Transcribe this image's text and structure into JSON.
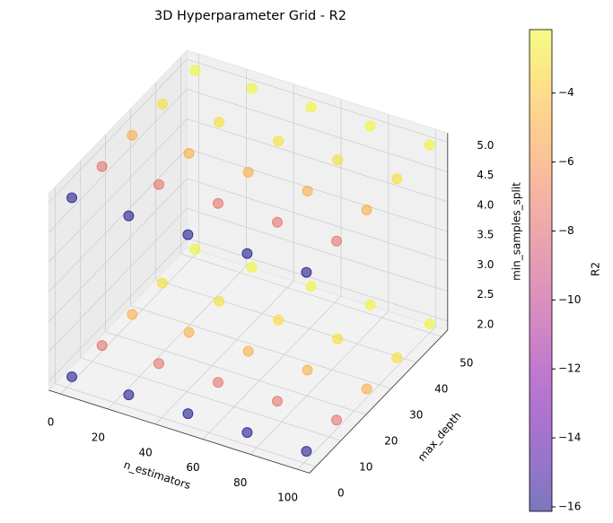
{
  "chart_data": {
    "type": "scatter3d",
    "title": "3D Hyperparameter Grid - R2",
    "xlabel": "n_estimators",
    "ylabel": "max_depth",
    "zlabel": "min_samples_split",
    "colorbar_label": "R2",
    "cmap": "plasma",
    "x": [
      1,
      25,
      50,
      75,
      100,
      1,
      25,
      50,
      75,
      100,
      1,
      25,
      50,
      75,
      100,
      1,
      25,
      50,
      75,
      100,
      1,
      25,
      50,
      75,
      100,
      1,
      25,
      50,
      75,
      100,
      1,
      25,
      50,
      75,
      100,
      1,
      25,
      50,
      75,
      100,
      1,
      25,
      50,
      75,
      100,
      1,
      25,
      50,
      75,
      100
    ],
    "y": [
      1,
      1,
      1,
      1,
      1,
      13,
      13,
      13,
      13,
      13,
      25,
      25,
      25,
      25,
      25,
      37,
      37,
      37,
      37,
      37,
      50,
      50,
      50,
      50,
      50,
      1,
      1,
      1,
      1,
      1,
      13,
      13,
      13,
      13,
      13,
      25,
      25,
      25,
      25,
      25,
      37,
      37,
      37,
      37,
      37,
      50,
      50,
      50,
      50,
      50
    ],
    "z": [
      2,
      2,
      2,
      2,
      2,
      2,
      2,
      2,
      2,
      2,
      2,
      2,
      2,
      2,
      2,
      2,
      2,
      2,
      2,
      2,
      2,
      2,
      2,
      2,
      2,
      5,
      5,
      5,
      5,
      5,
      5,
      5,
      5,
      5,
      5,
      5,
      5,
      5,
      5,
      5,
      5,
      5,
      5,
      5,
      5,
      5,
      5,
      5,
      5,
      5
    ],
    "values": [
      -16.1,
      -16.1,
      -16.1,
      -16.1,
      -16.1,
      -7.6,
      -7.6,
      -7.6,
      -7.6,
      -7.6,
      -4.8,
      -4.8,
      -4.8,
      -4.8,
      -4.8,
      -3.0,
      -3.0,
      -3.0,
      -3.0,
      -3.0,
      -2.2,
      -2.2,
      -2.2,
      -2.2,
      -2.2,
      -16.1,
      -16.1,
      -16.1,
      -16.1,
      -16.1,
      -7.6,
      -7.6,
      -7.6,
      -7.6,
      -7.6,
      -4.8,
      -4.8,
      -4.8,
      -4.8,
      -4.8,
      -3.0,
      -3.0,
      -3.0,
      -3.0,
      -3.0,
      -2.2,
      -2.2,
      -2.2,
      -2.2,
      -2.2
    ],
    "xlim": [
      -5,
      105
    ],
    "ylim": [
      -2.5,
      52.5
    ],
    "zlim": [
      1.85,
      5.15
    ],
    "xticks": [
      0,
      20,
      40,
      60,
      80,
      100
    ],
    "yticks": [
      0,
      10,
      20,
      30,
      40,
      50
    ],
    "zticks": [
      {
        "value": 2,
        "label": "2.0"
      },
      {
        "value": 2.5,
        "label": "2.5"
      },
      {
        "value": 3,
        "label": "3.0"
      },
      {
        "value": 3.5,
        "label": "3.5"
      },
      {
        "value": 4,
        "label": "4.0"
      },
      {
        "value": 4.5,
        "label": "4.5"
      },
      {
        "value": 5,
        "label": "5.0"
      }
    ],
    "clim": [
      -16.13,
      -2.16
    ],
    "cticks": [
      {
        "value": -16,
        "label": "−16"
      },
      {
        "value": -14,
        "label": "−14"
      },
      {
        "value": -12,
        "label": "−12"
      },
      {
        "value": -10,
        "label": "−10"
      },
      {
        "value": -8,
        "label": "−8"
      },
      {
        "value": -6,
        "label": "−6"
      },
      {
        "value": -4,
        "label": "−4"
      }
    ],
    "grid": true
  }
}
